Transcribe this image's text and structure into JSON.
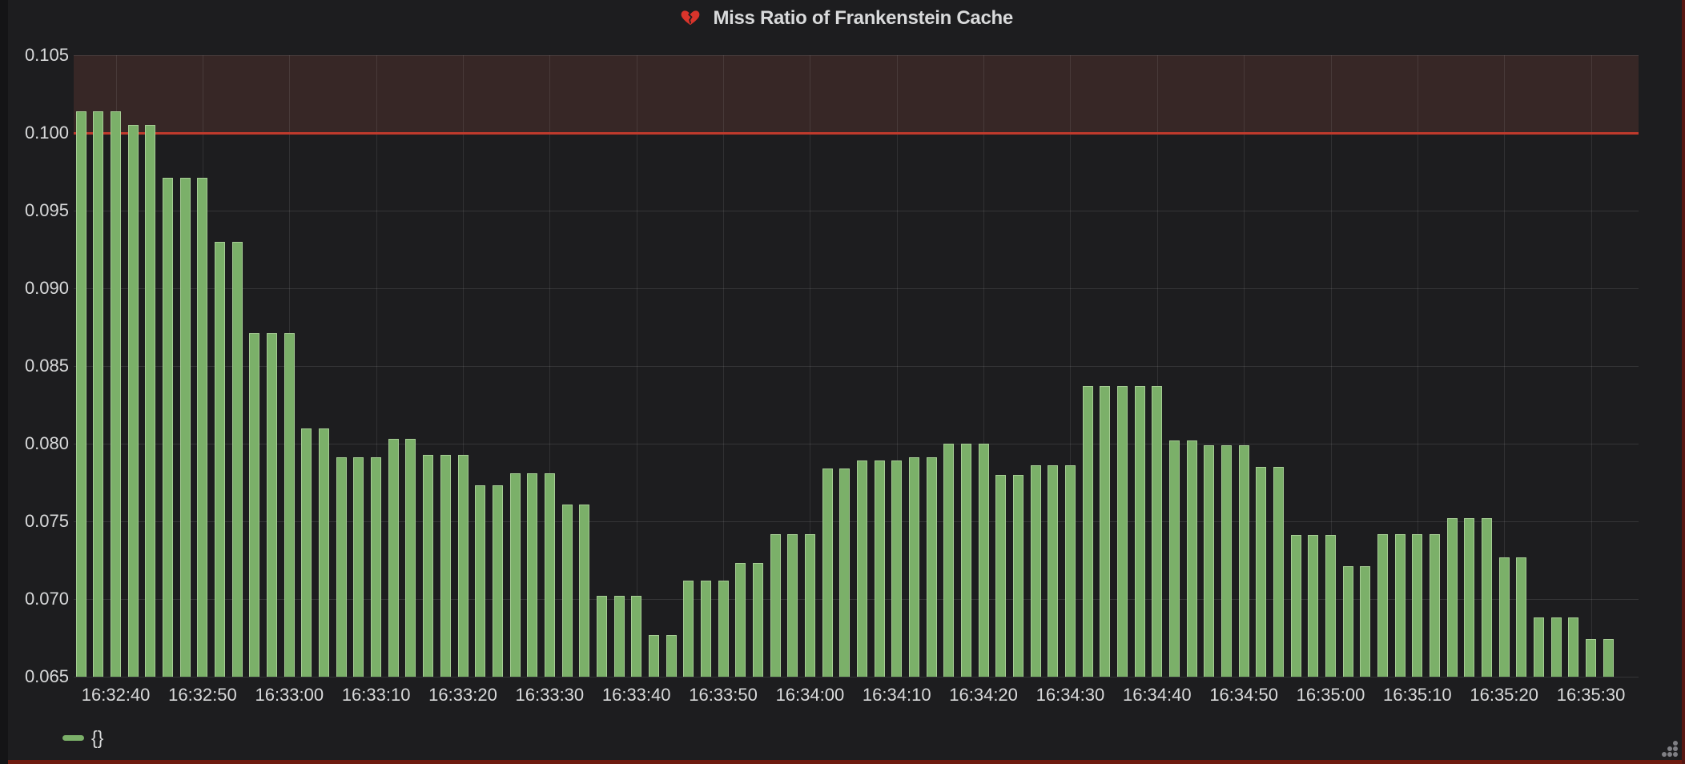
{
  "panel": {
    "title": "Miss Ratio of Frankenstein Cache",
    "title_icon": "broken-heart",
    "legend_label": "{}"
  },
  "chart_data": {
    "type": "bar",
    "title": "Miss Ratio of Frankenstein Cache",
    "xlabel": "",
    "ylabel": "",
    "ylim": [
      0.065,
      0.105
    ],
    "grid": true,
    "legend_position": "bottom-left",
    "y_tick_labels": [
      "0.105",
      "0.100",
      "0.095",
      "0.090",
      "0.085",
      "0.080",
      "0.075",
      "0.070",
      "0.065"
    ],
    "x_tick_labels": [
      "16:32:40",
      "16:32:50",
      "16:33:00",
      "16:33:10",
      "16:33:20",
      "16:33:30",
      "16:33:40",
      "16:33:50",
      "16:34:00",
      "16:34:10",
      "16:34:20",
      "16:34:30",
      "16:34:40",
      "16:34:50",
      "16:35:00",
      "16:35:10",
      "16:35:20",
      "16:35:30"
    ],
    "x_start_time": "16:32:36",
    "x_step_seconds": 2,
    "threshold": {
      "value": 0.1,
      "line_color": "#bf3a2c",
      "region_color": "#372726"
    },
    "series": [
      {
        "name": "{}",
        "color": "#7bb069",
        "values": [
          0.1014,
          0.1014,
          0.1014,
          0.1005,
          0.1005,
          0.0971,
          0.0971,
          0.0971,
          0.093,
          0.093,
          0.0871,
          0.0871,
          0.0871,
          0.081,
          0.081,
          0.0791,
          0.0791,
          0.0791,
          0.0803,
          0.0803,
          0.0793,
          0.0793,
          0.0793,
          0.0773,
          0.0773,
          0.0781,
          0.0781,
          0.0781,
          0.0761,
          0.0761,
          0.0702,
          0.0702,
          0.0702,
          0.0677,
          0.0677,
          0.0712,
          0.0712,
          0.0712,
          0.0723,
          0.0723,
          0.0742,
          0.0742,
          0.0742,
          0.0784,
          0.0784,
          0.0789,
          0.0789,
          0.0789,
          0.0791,
          0.0791,
          0.08,
          0.08,
          0.08,
          0.078,
          0.078,
          0.0786,
          0.0786,
          0.0786,
          0.0837,
          0.0837,
          0.0837,
          0.0837,
          0.0837,
          0.0802,
          0.0802,
          0.0799,
          0.0799,
          0.0799,
          0.0785,
          0.0785,
          0.0741,
          0.0741,
          0.0741,
          0.0721,
          0.0721,
          0.0742,
          0.0742,
          0.0742,
          0.0742,
          0.0752,
          0.0752,
          0.0752,
          0.0727,
          0.0727,
          0.0688,
          0.0688,
          0.0688,
          0.0674,
          0.0674
        ]
      }
    ]
  },
  "colors": {
    "page_bg": "#141416",
    "panel_bg": "#1d1d1f",
    "text": "#d8d9da",
    "bar_fill": "#7bb069",
    "bar_border": "#a6cd94",
    "grid": "rgba(216,217,218,0.12)",
    "threshold_line": "#bf3a2c",
    "threshold_region": "#372726",
    "alert_border": "#6e1b10",
    "heart_red": "#d9342b"
  }
}
